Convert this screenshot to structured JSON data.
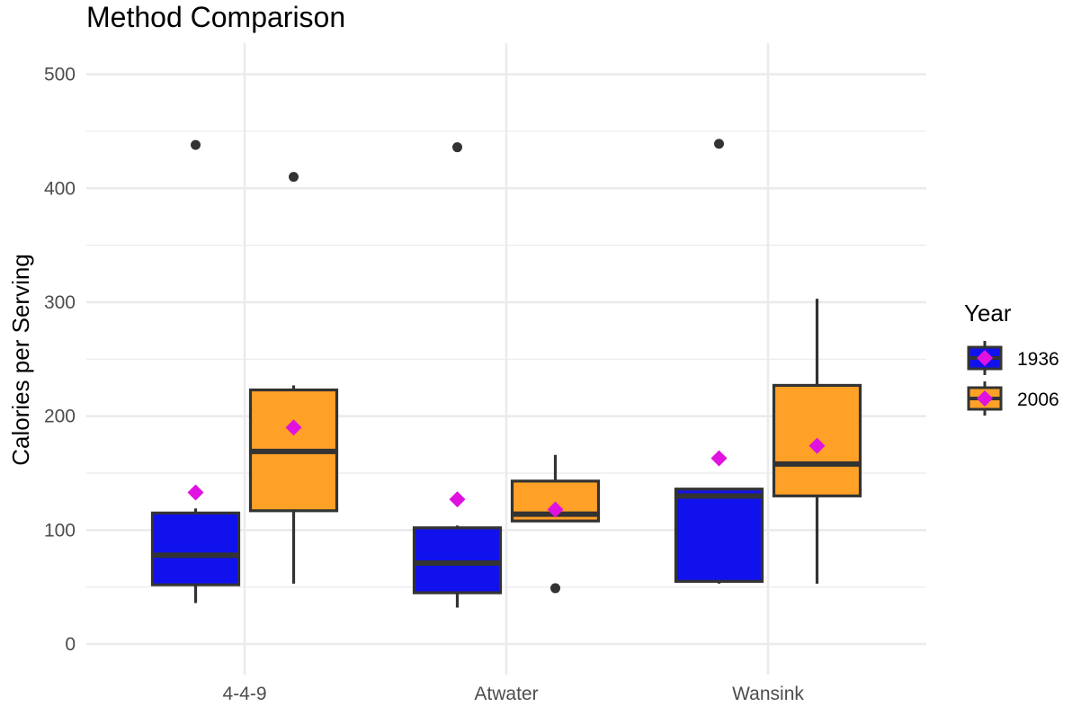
{
  "chart_data": {
    "type": "box",
    "title": "Method Comparison",
    "xlabel": "",
    "ylabel": "Calories per Serving",
    "ylim": [
      -15,
      530
    ],
    "yticks": [
      0,
      100,
      200,
      300,
      400,
      500
    ],
    "categories": [
      "4-4-9",
      "Atwater",
      "Wansink"
    ],
    "legend": {
      "title": "Year",
      "position": "right"
    },
    "grid": true,
    "colors": {
      "mean_marker": "#e012e0",
      "outline": "#333333",
      "grid": "#ebebeb"
    },
    "series": [
      {
        "name": "1936",
        "color": "#1111ee",
        "boxes": [
          {
            "q1": 52,
            "median": 78,
            "q3": 115,
            "whisker_low": 36,
            "whisker_high": 119,
            "mean": 133,
            "outliers": [
              438
            ]
          },
          {
            "q1": 45,
            "median": 71,
            "q3": 102,
            "whisker_low": 32,
            "whisker_high": 104,
            "mean": 127,
            "outliers": [
              436
            ]
          },
          {
            "q1": 55,
            "median": 130,
            "q3": 136,
            "whisker_low": 53,
            "whisker_high": 137,
            "mean": 163,
            "outliers": [
              439
            ]
          }
        ]
      },
      {
        "name": "2006",
        "color": "#ffa126",
        "boxes": [
          {
            "q1": 117,
            "median": 169,
            "q3": 223,
            "whisker_low": 53,
            "whisker_high": 227,
            "mean": 190,
            "outliers": [
              410
            ]
          },
          {
            "q1": 108,
            "median": 114,
            "q3": 143,
            "whisker_low": 108,
            "whisker_high": 166,
            "mean": 118,
            "outliers": [
              49
            ]
          },
          {
            "q1": 130,
            "median": 158,
            "q3": 227,
            "whisker_low": 53,
            "whisker_high": 303,
            "mean": 174,
            "outliers": []
          }
        ]
      }
    ]
  }
}
